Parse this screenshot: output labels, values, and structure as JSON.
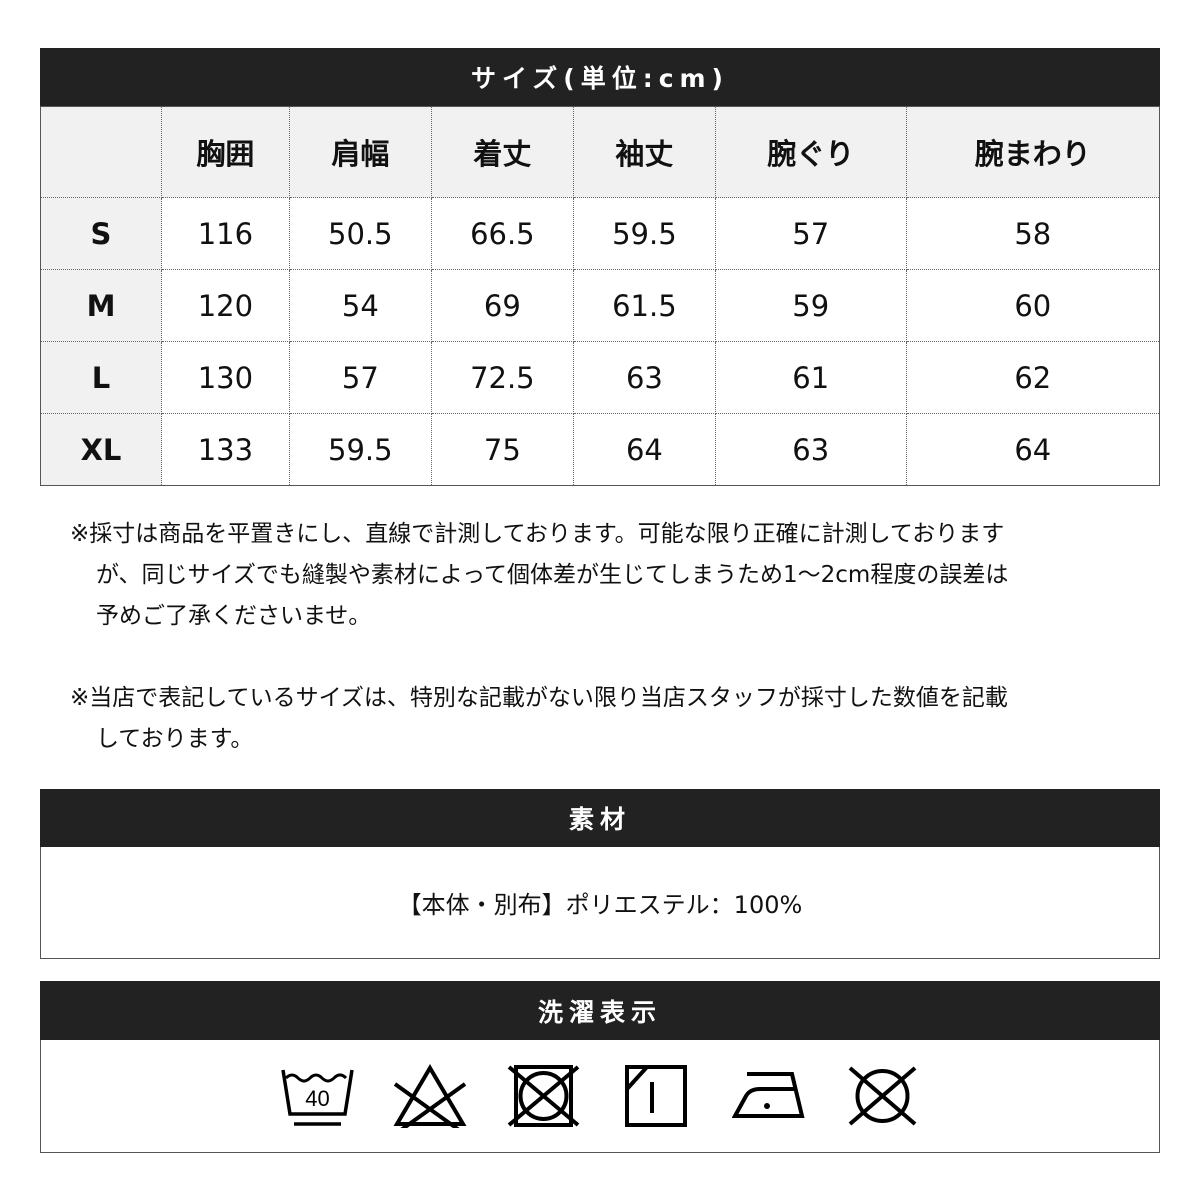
{
  "size_table": {
    "title": "サイズ(単位:cm)",
    "headers": [
      "",
      "胸囲",
      "肩幅",
      "着丈",
      "袖丈",
      "腕ぐり",
      "腕まわり"
    ],
    "rows": [
      {
        "size": "S",
        "values": [
          "116",
          "50.5",
          "66.5",
          "59.5",
          "57",
          "58"
        ]
      },
      {
        "size": "M",
        "values": [
          "120",
          "54",
          "69",
          "61.5",
          "59",
          "60"
        ]
      },
      {
        "size": "L",
        "values": [
          "130",
          "57",
          "72.5",
          "63",
          "61",
          "62"
        ]
      },
      {
        "size": "XL",
        "values": [
          "133",
          "59.5",
          "75",
          "64",
          "63",
          "64"
        ]
      }
    ]
  },
  "notes": [
    "※採寸は商品を平置きにし、直線で計測しております。可能な限り正確に計測しておりますが、同じサイズでも縫製や素材によって個体差が生じてしまうため1～2cm程度の誤差は予めご了承くださいませ。",
    "※当店で表記しているサイズは、特別な記載がない限り当店スタッフが採寸した数値を記載しております。"
  ],
  "material": {
    "title": "素材",
    "text": "【本体・別布】ポリエステル：100%"
  },
  "care": {
    "title": "洗濯表示",
    "wash_temp": "40",
    "icons": [
      "wash-40-gentle-icon",
      "no-bleach-icon",
      "no-tumble-dry-icon",
      "line-dry-shade-icon",
      "iron-low-icon",
      "no-dry-clean-icon"
    ]
  }
}
